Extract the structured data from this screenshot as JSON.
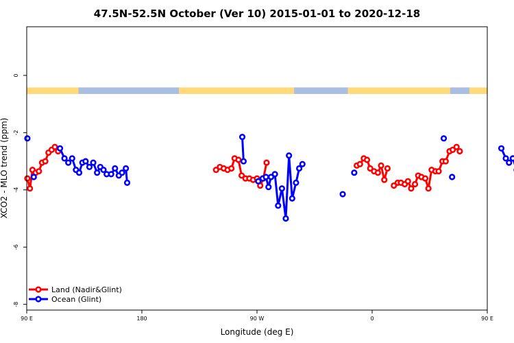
{
  "chart_data": {
    "type": "line",
    "title": "47.5N-52.5N October (Ver 10)   2015-01-01 to 2020-12-18",
    "xlabel": "Longitude (deg E)",
    "ylabel": "XCO2 - MLO trend (ppm)",
    "xlim": [
      90,
      450
    ],
    "ylim": [
      -8.2,
      1.7
    ],
    "x_ticks": [
      {
        "value": 90,
        "label": "90 E"
      },
      {
        "value": 180,
        "label": "180"
      },
      {
        "value": 270,
        "label": "90 W"
      },
      {
        "value": 360,
        "label": "0"
      },
      {
        "value": 450,
        "label": "90 E"
      },
      {
        "value": 540,
        "label": "180"
      }
    ],
    "y_ticks": [
      {
        "value": 0,
        "label": "0"
      },
      {
        "value": -2,
        "label": "-2"
      },
      {
        "value": -4,
        "label": "-4"
      },
      {
        "value": -6,
        "label": "-6"
      },
      {
        "value": -8,
        "label": "-8"
      }
    ],
    "land_ocean_strip": {
      "y_range": [
        -0.65,
        -0.42
      ],
      "land_color": "#FFD97A",
      "ocean_color": "#A9BEE0",
      "ocean_segments": [
        [
          130.5,
          209
        ],
        [
          299,
          341
        ],
        [
          421,
          436
        ],
        [
          508.5,
          540
        ]
      ]
    },
    "legend_position": "bottom-left",
    "series": [
      {
        "name": "Land (Nadir&Glint)",
        "color": "#FF0000",
        "segments": [
          [
            [
              90.5,
              -3.6
            ],
            [
              92.5,
              -3.95
            ],
            [
              94.5,
              -3.3
            ],
            [
              97,
              -3.4
            ],
            [
              99.5,
              -3.35
            ],
            [
              102,
              -3.05
            ],
            [
              104.5,
              -3.0
            ],
            [
              107,
              -2.7
            ],
            [
              109.5,
              -2.6
            ],
            [
              112,
              -2.5
            ],
            [
              114.5,
              -2.65
            ]
          ],
          [
            [
              238,
              -3.3
            ],
            [
              241,
              -3.2
            ],
            [
              244,
              -3.25
            ],
            [
              247,
              -3.3
            ],
            [
              250,
              -3.25
            ],
            [
              252.5,
              -2.9
            ],
            [
              255.5,
              -2.95
            ],
            [
              258,
              -3.5
            ],
            [
              261,
              -3.6
            ],
            [
              264,
              -3.6
            ],
            [
              267,
              -3.65
            ],
            [
              270,
              -3.6
            ],
            [
              272.5,
              -3.85
            ],
            [
              275,
              -3.6
            ],
            [
              277.5,
              -3.05
            ]
          ],
          [
            [
              348,
              -3.15
            ],
            [
              350.5,
              -3.1
            ],
            [
              353.5,
              -2.9
            ],
            [
              356,
              -2.95
            ],
            [
              358.5,
              -3.25
            ],
            [
              361.5,
              -3.35
            ],
            [
              364.5,
              -3.4
            ],
            [
              367,
              -3.15
            ],
            [
              369.5,
              -3.65
            ],
            [
              372,
              -3.25
            ]
          ],
          [
            [
              377,
              -3.85
            ],
            [
              380,
              -3.75
            ],
            [
              382.5,
              -3.75
            ],
            [
              385.5,
              -3.8
            ],
            [
              388,
              -3.7
            ],
            [
              390.5,
              -3.95
            ],
            [
              393.5,
              -3.8
            ],
            [
              396,
              -3.5
            ],
            [
              398.5,
              -3.55
            ],
            [
              401.5,
              -3.6
            ],
            [
              404,
              -3.95
            ],
            [
              406.5,
              -3.3
            ],
            [
              409.5,
              -3.35
            ],
            [
              412,
              -3.35
            ],
            [
              415,
              -3.0
            ],
            [
              417.5,
              -3.0
            ],
            [
              420.5,
              -2.65
            ],
            [
              423,
              -2.6
            ],
            [
              426,
              -2.5
            ],
            [
              428.5,
              -2.65
            ]
          ]
        ]
      },
      {
        "name": "Ocean (Glint)",
        "color": "#0000FF",
        "segments": [
          [
            [
              90.5,
              -2.2
            ]
          ],
          [
            [
              95.5,
              -3.55
            ]
          ],
          [
            [
              116,
              -2.55
            ],
            [
              119.5,
              -2.9
            ],
            [
              122.5,
              -3.05
            ],
            [
              125.5,
              -2.9
            ],
            [
              128.5,
              -3.3
            ],
            [
              131,
              -3.4
            ],
            [
              133.5,
              -3.05
            ],
            [
              136,
              -3.0
            ],
            [
              139,
              -3.2
            ],
            [
              142,
              -3.05
            ],
            [
              145,
              -3.4
            ],
            [
              147.5,
              -3.2
            ],
            [
              150,
              -3.3
            ],
            [
              152.5,
              -3.45
            ],
            [
              156,
              -3.45
            ],
            [
              159,
              -3.25
            ],
            [
              162,
              -3.5
            ],
            [
              164.5,
              -3.4
            ],
            [
              167.5,
              -3.25
            ],
            [
              168.5,
              -3.75
            ]
          ],
          [
            [
              258.5,
              -2.15
            ],
            [
              259.5,
              -3.0
            ]
          ],
          [
            [
              271,
              -3.7
            ],
            [
              274.5,
              -3.6
            ],
            [
              277,
              -3.55
            ],
            [
              279,
              -3.9
            ],
            [
              281,
              -3.55
            ],
            [
              284,
              -3.45
            ],
            [
              286.5,
              -4.55
            ],
            [
              289.5,
              -3.95
            ],
            [
              292.5,
              -5.0
            ],
            [
              295,
              -2.8
            ],
            [
              297.5,
              -4.3
            ],
            [
              300.5,
              -3.75
            ],
            [
              303,
              -3.25
            ],
            [
              305.5,
              -3.1
            ]
          ],
          [
            [
              337,
              -4.15
            ]
          ],
          [
            [
              346,
              -3.4
            ]
          ],
          [
            [
              416,
              -2.2
            ]
          ],
          [
            [
              422.5,
              -3.55
            ]
          ],
          [
            [
              461,
              -2.55
            ],
            [
              464.5,
              -2.9
            ],
            [
              467,
              -3.05
            ],
            [
              470,
              -2.9
            ],
            [
              473,
              -3.3
            ],
            [
              475.5,
              -3.4
            ],
            [
              478.5,
              -3.05
            ],
            [
              481.5,
              -3.0
            ]
          ]
        ]
      }
    ]
  }
}
